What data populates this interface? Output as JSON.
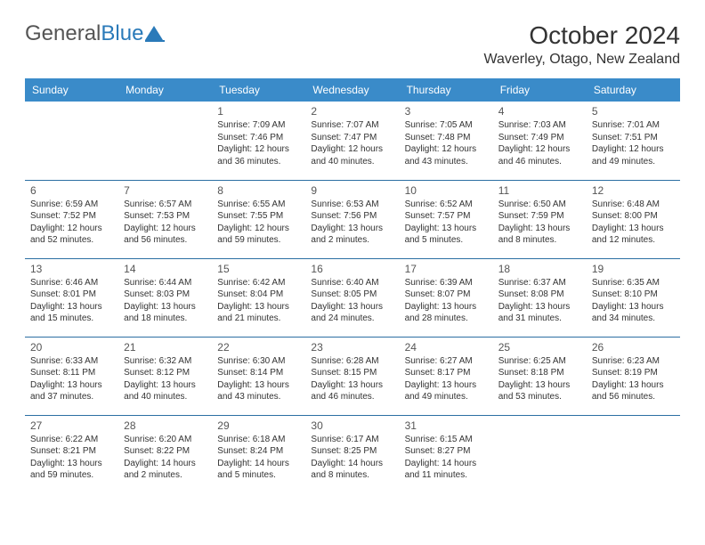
{
  "brand": {
    "part1": "General",
    "part2": "Blue"
  },
  "title": "October 2024",
  "location": "Waverley, Otago, New Zealand",
  "colors": {
    "header_bg": "#3a8bc9",
    "header_text": "#ffffff",
    "row_border": "#2c6fa3",
    "text": "#333333",
    "brand_blue": "#2a7ab9"
  },
  "day_headers": [
    "Sunday",
    "Monday",
    "Tuesday",
    "Wednesday",
    "Thursday",
    "Friday",
    "Saturday"
  ],
  "weeks": [
    [
      null,
      null,
      {
        "n": "1",
        "sunrise": "Sunrise: 7:09 AM",
        "sunset": "Sunset: 7:46 PM",
        "daylight": "Daylight: 12 hours and 36 minutes."
      },
      {
        "n": "2",
        "sunrise": "Sunrise: 7:07 AM",
        "sunset": "Sunset: 7:47 PM",
        "daylight": "Daylight: 12 hours and 40 minutes."
      },
      {
        "n": "3",
        "sunrise": "Sunrise: 7:05 AM",
        "sunset": "Sunset: 7:48 PM",
        "daylight": "Daylight: 12 hours and 43 minutes."
      },
      {
        "n": "4",
        "sunrise": "Sunrise: 7:03 AM",
        "sunset": "Sunset: 7:49 PM",
        "daylight": "Daylight: 12 hours and 46 minutes."
      },
      {
        "n": "5",
        "sunrise": "Sunrise: 7:01 AM",
        "sunset": "Sunset: 7:51 PM",
        "daylight": "Daylight: 12 hours and 49 minutes."
      }
    ],
    [
      {
        "n": "6",
        "sunrise": "Sunrise: 6:59 AM",
        "sunset": "Sunset: 7:52 PM",
        "daylight": "Daylight: 12 hours and 52 minutes."
      },
      {
        "n": "7",
        "sunrise": "Sunrise: 6:57 AM",
        "sunset": "Sunset: 7:53 PM",
        "daylight": "Daylight: 12 hours and 56 minutes."
      },
      {
        "n": "8",
        "sunrise": "Sunrise: 6:55 AM",
        "sunset": "Sunset: 7:55 PM",
        "daylight": "Daylight: 12 hours and 59 minutes."
      },
      {
        "n": "9",
        "sunrise": "Sunrise: 6:53 AM",
        "sunset": "Sunset: 7:56 PM",
        "daylight": "Daylight: 13 hours and 2 minutes."
      },
      {
        "n": "10",
        "sunrise": "Sunrise: 6:52 AM",
        "sunset": "Sunset: 7:57 PM",
        "daylight": "Daylight: 13 hours and 5 minutes."
      },
      {
        "n": "11",
        "sunrise": "Sunrise: 6:50 AM",
        "sunset": "Sunset: 7:59 PM",
        "daylight": "Daylight: 13 hours and 8 minutes."
      },
      {
        "n": "12",
        "sunrise": "Sunrise: 6:48 AM",
        "sunset": "Sunset: 8:00 PM",
        "daylight": "Daylight: 13 hours and 12 minutes."
      }
    ],
    [
      {
        "n": "13",
        "sunrise": "Sunrise: 6:46 AM",
        "sunset": "Sunset: 8:01 PM",
        "daylight": "Daylight: 13 hours and 15 minutes."
      },
      {
        "n": "14",
        "sunrise": "Sunrise: 6:44 AM",
        "sunset": "Sunset: 8:03 PM",
        "daylight": "Daylight: 13 hours and 18 minutes."
      },
      {
        "n": "15",
        "sunrise": "Sunrise: 6:42 AM",
        "sunset": "Sunset: 8:04 PM",
        "daylight": "Daylight: 13 hours and 21 minutes."
      },
      {
        "n": "16",
        "sunrise": "Sunrise: 6:40 AM",
        "sunset": "Sunset: 8:05 PM",
        "daylight": "Daylight: 13 hours and 24 minutes."
      },
      {
        "n": "17",
        "sunrise": "Sunrise: 6:39 AM",
        "sunset": "Sunset: 8:07 PM",
        "daylight": "Daylight: 13 hours and 28 minutes."
      },
      {
        "n": "18",
        "sunrise": "Sunrise: 6:37 AM",
        "sunset": "Sunset: 8:08 PM",
        "daylight": "Daylight: 13 hours and 31 minutes."
      },
      {
        "n": "19",
        "sunrise": "Sunrise: 6:35 AM",
        "sunset": "Sunset: 8:10 PM",
        "daylight": "Daylight: 13 hours and 34 minutes."
      }
    ],
    [
      {
        "n": "20",
        "sunrise": "Sunrise: 6:33 AM",
        "sunset": "Sunset: 8:11 PM",
        "daylight": "Daylight: 13 hours and 37 minutes."
      },
      {
        "n": "21",
        "sunrise": "Sunrise: 6:32 AM",
        "sunset": "Sunset: 8:12 PM",
        "daylight": "Daylight: 13 hours and 40 minutes."
      },
      {
        "n": "22",
        "sunrise": "Sunrise: 6:30 AM",
        "sunset": "Sunset: 8:14 PM",
        "daylight": "Daylight: 13 hours and 43 minutes."
      },
      {
        "n": "23",
        "sunrise": "Sunrise: 6:28 AM",
        "sunset": "Sunset: 8:15 PM",
        "daylight": "Daylight: 13 hours and 46 minutes."
      },
      {
        "n": "24",
        "sunrise": "Sunrise: 6:27 AM",
        "sunset": "Sunset: 8:17 PM",
        "daylight": "Daylight: 13 hours and 49 minutes."
      },
      {
        "n": "25",
        "sunrise": "Sunrise: 6:25 AM",
        "sunset": "Sunset: 8:18 PM",
        "daylight": "Daylight: 13 hours and 53 minutes."
      },
      {
        "n": "26",
        "sunrise": "Sunrise: 6:23 AM",
        "sunset": "Sunset: 8:19 PM",
        "daylight": "Daylight: 13 hours and 56 minutes."
      }
    ],
    [
      {
        "n": "27",
        "sunrise": "Sunrise: 6:22 AM",
        "sunset": "Sunset: 8:21 PM",
        "daylight": "Daylight: 13 hours and 59 minutes."
      },
      {
        "n": "28",
        "sunrise": "Sunrise: 6:20 AM",
        "sunset": "Sunset: 8:22 PM",
        "daylight": "Daylight: 14 hours and 2 minutes."
      },
      {
        "n": "29",
        "sunrise": "Sunrise: 6:18 AM",
        "sunset": "Sunset: 8:24 PM",
        "daylight": "Daylight: 14 hours and 5 minutes."
      },
      {
        "n": "30",
        "sunrise": "Sunrise: 6:17 AM",
        "sunset": "Sunset: 8:25 PM",
        "daylight": "Daylight: 14 hours and 8 minutes."
      },
      {
        "n": "31",
        "sunrise": "Sunrise: 6:15 AM",
        "sunset": "Sunset: 8:27 PM",
        "daylight": "Daylight: 14 hours and 11 minutes."
      },
      null,
      null
    ]
  ]
}
